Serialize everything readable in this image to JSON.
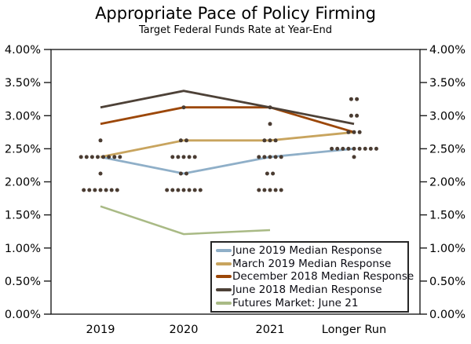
{
  "title": "Appropriate Pace of Policy Firming",
  "subtitle": "Target Federal Funds Rate at Year-End",
  "colors": {
    "axis": "#1c1c1c",
    "text": "#000000",
    "june_2019": "#8FAFC8",
    "march_2019": "#C8A45E",
    "december_2018": "#9C4708",
    "june_2018": "#4D4137",
    "futures": "#A9BA85",
    "dots": "#4A3C32"
  },
  "legend": {
    "items": [
      {
        "label": "June 2019 Median Response",
        "color": "#8FAFC8"
      },
      {
        "label": "March 2019 Median Response",
        "color": "#C8A45E"
      },
      {
        "label": "December 2018 Median Response",
        "color": "#9C4708"
      },
      {
        "label": "June 2018 Median Response",
        "color": "#4D4137"
      },
      {
        "label": "Futures Market: June 21",
        "color": "#A9BA85"
      }
    ]
  },
  "chart_data": {
    "type": "line",
    "title": "Appropriate Pace of Policy Firming",
    "subtitle": "Target Federal Funds Rate at Year-End",
    "categories": [
      "2019",
      "2020",
      "2021",
      "Longer Run"
    ],
    "y_axis": {
      "min": 0,
      "max": 4,
      "tick_step": 0.5,
      "tick_labels": [
        "4.00%",
        "3.50%",
        "3.00%",
        "2.50%",
        "2.00%",
        "1.50%",
        "1.00%",
        "0.50%",
        "0.00%"
      ],
      "format": "percent",
      "shown_on": "both-sides"
    },
    "grid": false,
    "legend_position": "inside-bottom-right",
    "series": [
      {
        "name": "June 2019 Median Response",
        "color": "#8FAFC8",
        "width": 2.8,
        "values": [
          2.375,
          2.125,
          2.375,
          2.5
        ]
      },
      {
        "name": "March 2019 Median Response",
        "color": "#C8A45E",
        "width": 2.8,
        "values": [
          2.375,
          2.625,
          2.625,
          2.75
        ]
      },
      {
        "name": "December 2018 Median Response",
        "color": "#9C4708",
        "width": 2.8,
        "values": [
          2.875,
          3.125,
          3.125,
          2.75
        ]
      },
      {
        "name": "June 2018 Median Response",
        "color": "#4D4137",
        "width": 2.8,
        "values": [
          3.125,
          3.375,
          3.125,
          2.875
        ]
      },
      {
        "name": "Futures Market: June 21",
        "color": "#A9BA85",
        "width": 2.5,
        "values": [
          1.63,
          1.21,
          1.27,
          null
        ]
      }
    ],
    "dot_plot": {
      "description": "Individual FOMC participant projections (count of dots per rate level)",
      "color": "#4A3C32",
      "points": [
        {
          "category": "2019",
          "dots": [
            {
              "value": 2.625,
              "count": 1
            },
            {
              "value": 2.375,
              "count": 8
            },
            {
              "value": 2.125,
              "count": 1
            },
            {
              "value": 1.875,
              "count": 7
            }
          ]
        },
        {
          "category": "2020",
          "dots": [
            {
              "value": 3.125,
              "count": 1
            },
            {
              "value": 2.625,
              "count": 2
            },
            {
              "value": 2.375,
              "count": 5
            },
            {
              "value": 2.125,
              "count": 2
            },
            {
              "value": 1.875,
              "count": 7
            }
          ]
        },
        {
          "category": "2021",
          "dots": [
            {
              "value": 3.125,
              "count": 1
            },
            {
              "value": 2.875,
              "count": 1
            },
            {
              "value": 2.625,
              "count": 3
            },
            {
              "value": 2.375,
              "count": 5
            },
            {
              "value": 2.125,
              "count": 2
            },
            {
              "value": 1.875,
              "count": 5
            }
          ]
        },
        {
          "category": "Longer Run",
          "dots": [
            {
              "value": 3.25,
              "count": 2
            },
            {
              "value": 3.0,
              "count": 2
            },
            {
              "value": 2.75,
              "count": 3
            },
            {
              "value": 2.5,
              "count": 9
            },
            {
              "value": 2.375,
              "count": 1
            }
          ]
        }
      ]
    }
  }
}
